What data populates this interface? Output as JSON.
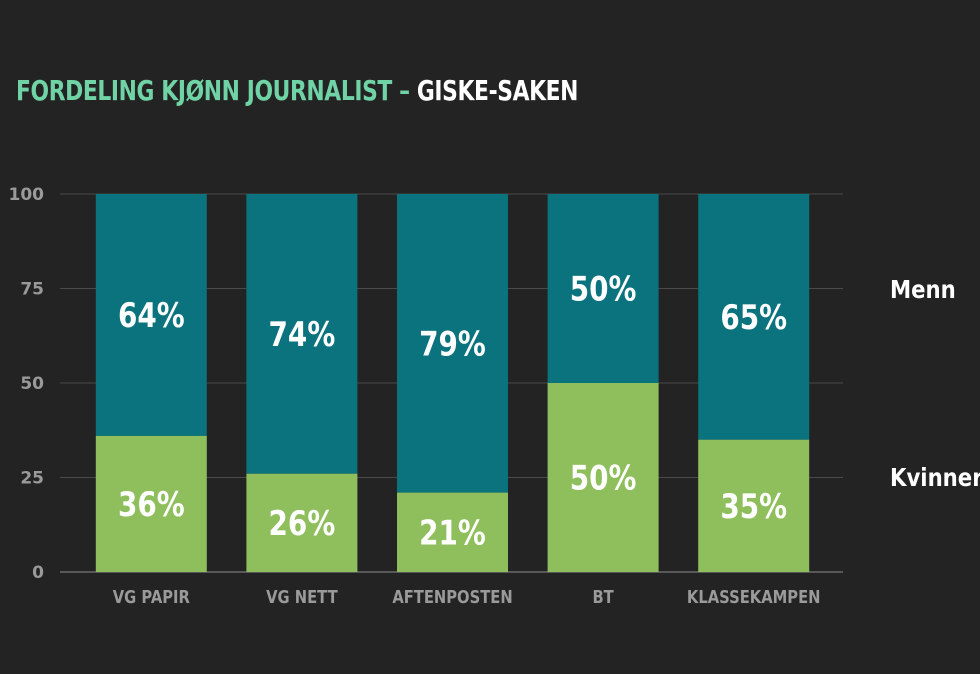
{
  "title": {
    "part1": "FORDELING KJØNN JOURNALIST",
    "dash": "–",
    "part2": "GISKE-SAKEN"
  },
  "colors": {
    "menn": "#0b737d",
    "kvinner": "#8fbf5c",
    "background": "#232323",
    "title_accent": "#6fd3a6"
  },
  "chart_data": {
    "type": "bar",
    "stacked": true,
    "title": "FORDELING KJØNN JOURNALIST – GISKE-SAKEN",
    "categories": [
      "VG PAPIR",
      "VG NETT",
      "AFTENPOSTEN",
      "BT",
      "KLASSEKAMPEN"
    ],
    "series": [
      {
        "name": "Kvinner",
        "values": [
          36,
          26,
          21,
          50,
          35
        ],
        "labels": [
          "36%",
          "26%",
          "21%",
          "50%",
          "35%"
        ]
      },
      {
        "name": "Menn",
        "values": [
          64,
          74,
          79,
          50,
          65
        ],
        "labels": [
          "64%",
          "74%",
          "79%",
          "50%",
          "65%"
        ]
      }
    ],
    "ylim": [
      0,
      100
    ],
    "yticks": [
      "0",
      "25",
      "50",
      "75",
      "100"
    ],
    "grid": true,
    "legend": "right"
  }
}
